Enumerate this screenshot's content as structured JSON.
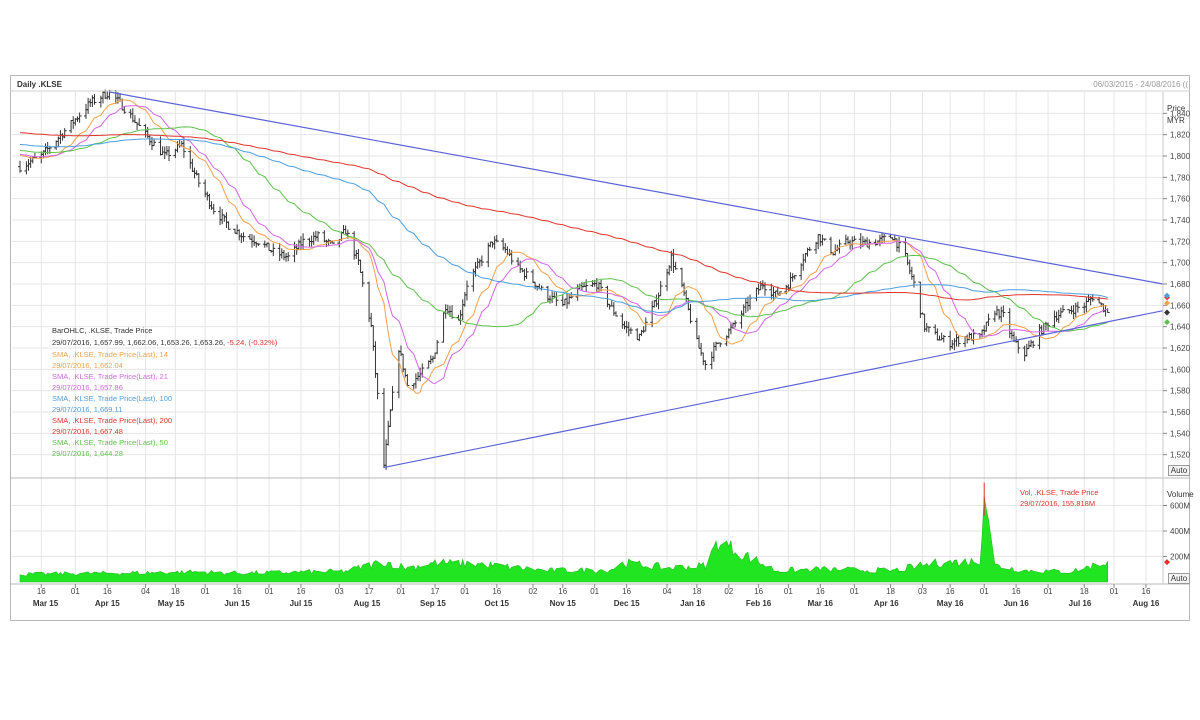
{
  "header": {
    "title": "Daily .KLSE",
    "date_range": "06/03/2015 - 24/08/2016 (("
  },
  "price_axis": {
    "title": "Price",
    "currency": "MYR",
    "auto_label": "Auto"
  },
  "volume_axis": {
    "title": "Volume",
    "auto_label": "Auto"
  },
  "legend": [
    {
      "text": "BarOHLC, .KLSE, Trade Price",
      "color": "#333333"
    },
    {
      "text": "29/07/2016, 1,657.99, 1,662.06, 1,653.26, 1,653.26,",
      "color": "#333333",
      "change": "-5.24, (-0.32%)",
      "change_color": "#e0352b"
    },
    {
      "text": "SMA, .KLSE, Trade Price(Last), 14",
      "color": "#f5a04a"
    },
    {
      "text": "29/07/2016, 1,662.04",
      "color": "#f5a04a"
    },
    {
      "text": "SMA, .KLSE, Trade Price(Last), 21",
      "color": "#d366e6"
    },
    {
      "text": "29/07/2016, 1,657.86",
      "color": "#d366e6"
    },
    {
      "text": "SMA, .KLSE, Trade Price(Last), 100",
      "color": "#4a9fe0"
    },
    {
      "text": "29/07/2016, 1,669.11",
      "color": "#4a9fe0"
    },
    {
      "text": "SMA, .KLSE, Trade Price(Last), 200",
      "color": "#e0352b"
    },
    {
      "text": "29/07/2016, 1,667.48",
      "color": "#e0352b"
    },
    {
      "text": "SMA, .KLSE, Trade Price(Last), 50",
      "color": "#5cc34a"
    },
    {
      "text": "29/07/2016, 1,644.28",
      "color": "#5cc34a"
    }
  ],
  "volume_legend": [
    "Vol, .KLSE, Trade Price",
    "29/07/2016, 155.818M"
  ],
  "colors": {
    "bars": "#333333",
    "sma14": "#f5a04a",
    "sma21": "#d366e6",
    "sma100": "#4a9fe0",
    "sma200": "#e0352b",
    "sma50": "#5cc34a",
    "trendline": "#5a64d8",
    "volume": "#22e522",
    "volume_edge": "#1fbf1f",
    "volume_peak": "#e0352b",
    "grid": "#e6e6e6"
  },
  "chart_data": {
    "type": "line",
    "x_range": [
      "2015-03-06",
      "2016-08-24"
    ],
    "y_range": [
      1500,
      1860
    ],
    "yticks": [
      1520,
      1540,
      1560,
      1580,
      1600,
      1620,
      1640,
      1660,
      1680,
      1700,
      1720,
      1740,
      1760,
      1780,
      1800,
      1820,
      1840
    ],
    "ytick_labels": [
      "1,520",
      "1,540",
      "1,560",
      "1,580",
      "1,600",
      "1,620",
      "1,640",
      "1,660",
      "1,680",
      "1,700",
      "1,720",
      "1,740",
      "1,760",
      "1,780",
      "1,800",
      "1,820",
      "1,840"
    ],
    "volume_range": [
      0,
      800
    ],
    "volume_ticks": [
      200,
      400,
      600
    ],
    "volume_tick_labels": [
      "200M",
      "400M",
      "600M"
    ],
    "grid": true,
    "x_ticks": [
      {
        "date": "2015-03-16",
        "label": "16"
      },
      {
        "date": "2015-04-01",
        "label": "01"
      },
      {
        "date": "2015-04-16",
        "label": "16"
      },
      {
        "date": "2015-05-04",
        "label": "04"
      },
      {
        "date": "2015-05-18",
        "label": "18"
      },
      {
        "date": "2015-06-01",
        "label": "01"
      },
      {
        "date": "2015-06-16",
        "label": "16"
      },
      {
        "date": "2015-07-01",
        "label": "01"
      },
      {
        "date": "2015-07-16",
        "label": "16"
      },
      {
        "date": "2015-08-03",
        "label": "03"
      },
      {
        "date": "2015-08-17",
        "label": "17"
      },
      {
        "date": "2015-09-01",
        "label": "01"
      },
      {
        "date": "2015-09-17",
        "label": "17"
      },
      {
        "date": "2015-10-01",
        "label": "01"
      },
      {
        "date": "2015-10-16",
        "label": "16"
      },
      {
        "date": "2015-11-02",
        "label": "02"
      },
      {
        "date": "2015-11-16",
        "label": "16"
      },
      {
        "date": "2015-12-01",
        "label": "01"
      },
      {
        "date": "2015-12-16",
        "label": "16"
      },
      {
        "date": "2016-01-04",
        "label": "04"
      },
      {
        "date": "2016-01-18",
        "label": "18"
      },
      {
        "date": "2016-02-02",
        "label": "02"
      },
      {
        "date": "2016-02-16",
        "label": "16"
      },
      {
        "date": "2016-03-01",
        "label": "01"
      },
      {
        "date": "2016-03-16",
        "label": "16"
      },
      {
        "date": "2016-04-01",
        "label": "01"
      },
      {
        "date": "2016-04-18",
        "label": "18"
      },
      {
        "date": "2016-05-03",
        "label": "03"
      },
      {
        "date": "2016-05-16",
        "label": "16"
      },
      {
        "date": "2016-06-01",
        "label": "01"
      },
      {
        "date": "2016-06-16",
        "label": "16"
      },
      {
        "date": "2016-07-01",
        "label": "01"
      },
      {
        "date": "2016-07-18",
        "label": "18"
      },
      {
        "date": "2016-08-01",
        "label": "01"
      },
      {
        "date": "2016-08-16",
        "label": "16"
      }
    ],
    "month_labels": [
      {
        "date": "2015-03-18",
        "label": "Mar 15"
      },
      {
        "date": "2015-04-16",
        "label": "Apr 15"
      },
      {
        "date": "2015-05-16",
        "label": "May 15"
      },
      {
        "date": "2015-06-16",
        "label": "Jun 15"
      },
      {
        "date": "2015-07-16",
        "label": "Jul 15"
      },
      {
        "date": "2015-08-16",
        "label": "Aug 15"
      },
      {
        "date": "2015-09-16",
        "label": "Sep 15"
      },
      {
        "date": "2015-10-16",
        "label": "Oct 15"
      },
      {
        "date": "2015-11-16",
        "label": "Nov 15"
      },
      {
        "date": "2015-12-16",
        "label": "Dec 15"
      },
      {
        "date": "2016-01-16",
        "label": "Jan 16"
      },
      {
        "date": "2016-02-16",
        "label": "Feb 16"
      },
      {
        "date": "2016-03-16",
        "label": "Mar 16"
      },
      {
        "date": "2016-04-16",
        "label": "Apr 16"
      },
      {
        "date": "2016-05-16",
        "label": "May 16"
      },
      {
        "date": "2016-06-16",
        "label": "Jun 16"
      },
      {
        "date": "2016-07-16",
        "label": "Jul 16"
      },
      {
        "date": "2016-08-16",
        "label": "Aug 16"
      }
    ],
    "price_keypoints": [
      [
        "2015-03-06",
        1790
      ],
      [
        "2015-03-16",
        1800
      ],
      [
        "2015-03-30",
        1830
      ],
      [
        "2015-04-08",
        1850
      ],
      [
        "2015-04-17",
        1860
      ],
      [
        "2015-04-24",
        1845
      ],
      [
        "2015-05-04",
        1820
      ],
      [
        "2015-05-13",
        1800
      ],
      [
        "2015-05-21",
        1810
      ],
      [
        "2015-05-29",
        1775
      ],
      [
        "2015-06-05",
        1750
      ],
      [
        "2015-06-12",
        1735
      ],
      [
        "2015-06-19",
        1725
      ],
      [
        "2015-06-26",
        1720
      ],
      [
        "2015-07-03",
        1710
      ],
      [
        "2015-07-10",
        1705
      ],
      [
        "2015-07-17",
        1720
      ],
      [
        "2015-07-24",
        1725
      ],
      [
        "2015-07-31",
        1715
      ],
      [
        "2015-08-06",
        1730
      ],
      [
        "2015-08-12",
        1700
      ],
      [
        "2015-08-18",
        1640
      ],
      [
        "2015-08-21",
        1575
      ],
      [
        "2015-08-24",
        1510
      ],
      [
        "2015-08-27",
        1560
      ],
      [
        "2015-08-31",
        1620
      ],
      [
        "2015-09-04",
        1585
      ],
      [
        "2015-09-10",
        1595
      ],
      [
        "2015-09-16",
        1610
      ],
      [
        "2015-09-22",
        1660
      ],
      [
        "2015-09-28",
        1645
      ],
      [
        "2015-10-02",
        1680
      ],
      [
        "2015-10-08",
        1700
      ],
      [
        "2015-10-14",
        1720
      ],
      [
        "2015-10-20",
        1712
      ],
      [
        "2015-10-26",
        1695
      ],
      [
        "2015-11-01",
        1685
      ],
      [
        "2015-11-08",
        1670
      ],
      [
        "2015-11-16",
        1660
      ],
      [
        "2015-11-24",
        1675
      ],
      [
        "2015-12-02",
        1680
      ],
      [
        "2015-12-08",
        1660
      ],
      [
        "2015-12-15",
        1640
      ],
      [
        "2015-12-22",
        1630
      ],
      [
        "2015-12-30",
        1665
      ],
      [
        "2016-01-06",
        1705
      ],
      [
        "2016-01-12",
        1670
      ],
      [
        "2016-01-18",
        1625
      ],
      [
        "2016-01-22",
        1605
      ],
      [
        "2016-01-28",
        1625
      ],
      [
        "2016-02-04",
        1640
      ],
      [
        "2016-02-12",
        1665
      ],
      [
        "2016-02-18",
        1680
      ],
      [
        "2016-02-24",
        1670
      ],
      [
        "2016-03-01",
        1680
      ],
      [
        "2016-03-08",
        1705
      ],
      [
        "2016-03-15",
        1725
      ],
      [
        "2016-03-22",
        1710
      ],
      [
        "2016-03-29",
        1720
      ],
      [
        "2016-04-05",
        1718
      ],
      [
        "2016-04-12",
        1720
      ],
      [
        "2016-04-19",
        1725
      ],
      [
        "2016-04-25",
        1705
      ],
      [
        "2016-04-29",
        1680
      ],
      [
        "2016-05-04",
        1640
      ],
      [
        "2016-05-10",
        1630
      ],
      [
        "2016-05-16",
        1625
      ],
      [
        "2016-05-23",
        1630
      ],
      [
        "2016-05-30",
        1630
      ],
      [
        "2016-06-06",
        1655
      ],
      [
        "2016-06-10",
        1650
      ],
      [
        "2016-06-15",
        1625
      ],
      [
        "2016-06-20",
        1615
      ],
      [
        "2016-06-27",
        1635
      ],
      [
        "2016-07-04",
        1650
      ],
      [
        "2016-07-11",
        1655
      ],
      [
        "2016-07-18",
        1660
      ],
      [
        "2016-07-22",
        1668
      ],
      [
        "2016-07-26",
        1660
      ],
      [
        "2016-07-29",
        1653.26
      ]
    ],
    "volume_keypoints": [
      [
        "2015-03-06",
        60
      ],
      [
        "2015-04-17",
        70
      ],
      [
        "2015-05-13",
        75
      ],
      [
        "2015-05-29",
        80
      ],
      [
        "2015-06-12",
        70
      ],
      [
        "2015-07-10",
        75
      ],
      [
        "2015-08-06",
        85
      ],
      [
        "2015-08-12",
        110
      ],
      [
        "2015-08-24",
        160
      ],
      [
        "2015-09-04",
        110
      ],
      [
        "2015-09-16",
        150
      ],
      [
        "2015-10-08",
        140
      ],
      [
        "2015-11-08",
        90
      ],
      [
        "2015-12-08",
        95
      ],
      [
        "2015-12-15",
        150
      ],
      [
        "2016-01-06",
        110
      ],
      [
        "2016-01-22",
        130
      ],
      [
        "2016-01-28",
        320
      ],
      [
        "2016-02-24",
        90
      ],
      [
        "2016-03-15",
        100
      ],
      [
        "2016-04-19",
        90
      ],
      [
        "2016-05-10",
        150
      ],
      [
        "2016-05-23",
        160
      ],
      [
        "2016-05-30",
        160
      ],
      [
        "2016-06-01",
        780
      ],
      [
        "2016-06-06",
        130
      ],
      [
        "2016-06-20",
        90
      ],
      [
        "2016-07-11",
        80
      ],
      [
        "2016-07-29",
        155.818
      ]
    ],
    "series": [
      {
        "name": "SMA, .KLSE, Trade Price(Last), 14",
        "period": 14,
        "color_key": "sma14"
      },
      {
        "name": "SMA, .KLSE, Trade Price(Last), 21",
        "period": 21,
        "color_key": "sma21"
      },
      {
        "name": "SMA, .KLSE, Trade Price(Last), 50",
        "period": 50,
        "color_key": "sma50"
      },
      {
        "name": "SMA, .KLSE, Trade Price(Last), 100",
        "period": 100,
        "color_key": "sma100"
      },
      {
        "name": "SMA, .KLSE, Trade Price(Last), 200",
        "period": 200,
        "color_key": "sma200"
      }
    ],
    "annotations": [
      {
        "type": "trendline",
        "from": [
          "2015-04-17",
          1860
        ],
        "to": [
          "2016-08-24",
          1680
        ]
      },
      {
        "type": "trendline",
        "from": [
          "2015-08-24",
          1508
        ],
        "to": [
          "2016-08-24",
          1655
        ]
      }
    ],
    "last_values": {
      "sma14": 1662.04,
      "sma21": 1657.86,
      "sma100": 1669.11,
      "sma200": 1667.48,
      "sma50": 1644.28,
      "close": 1653.26
    }
  }
}
